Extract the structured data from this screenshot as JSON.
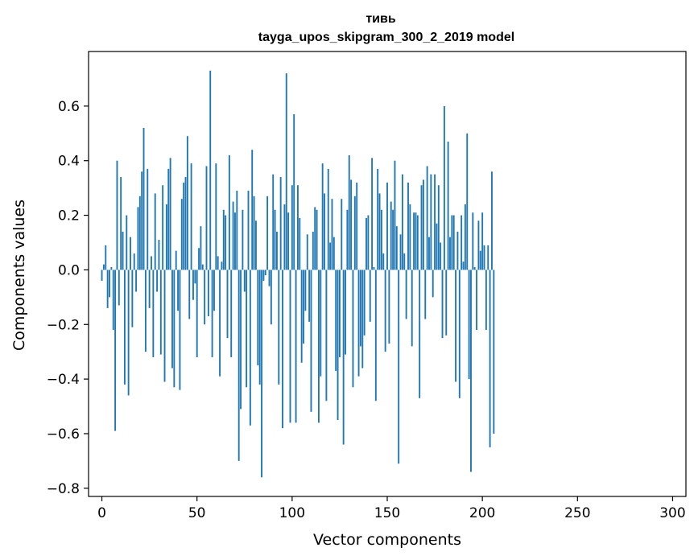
{
  "chart_data": {
    "type": "bar",
    "title": "тивь",
    "subtitle": "tayga_upos_skipgram_300_2_2019 model",
    "xlabel": "Vector components",
    "ylabel": "Components values",
    "xlim": [
      -7,
      307
    ],
    "ylim": [
      -0.83,
      0.8
    ],
    "xticks": [
      0,
      50,
      100,
      150,
      200,
      250,
      300
    ],
    "xtick_labels": [
      "0",
      "50",
      "100",
      "150",
      "200",
      "250",
      "300"
    ],
    "yticks": [
      -0.8,
      -0.6,
      -0.4,
      -0.2,
      0.0,
      0.2,
      0.4,
      0.6
    ],
    "ytick_labels": [
      "−0.8",
      "−0.6",
      "−0.4",
      "−0.2",
      "0.0",
      "0.2",
      "0.4",
      "0.6"
    ],
    "bar_color": "#1f77b4",
    "values": [
      -0.04,
      0.02,
      0.09,
      -0.14,
      -0.1,
      0.01,
      -0.22,
      -0.59,
      0.4,
      -0.13,
      0.34,
      0.14,
      -0.42,
      0.2,
      -0.46,
      0.12,
      -0.21,
      0.06,
      -0.08,
      0.23,
      0.27,
      0.36,
      0.52,
      -0.3,
      0.37,
      -0.14,
      0.05,
      -0.32,
      0.28,
      -0.08,
      0.11,
      -0.31,
      0.31,
      -0.41,
      0.24,
      0.37,
      0.41,
      -0.36,
      -0.43,
      0.07,
      -0.15,
      -0.44,
      0.26,
      0.32,
      0.34,
      0.49,
      -0.18,
      0.39,
      -0.11,
      -0.05,
      -0.32,
      0.08,
      0.16,
      0.02,
      -0.2,
      0.38,
      -0.17,
      0.73,
      -0.32,
      -0.15,
      0.39,
      0.05,
      -0.39,
      0.03,
      0.22,
      0.2,
      -0.25,
      0.42,
      -0.32,
      0.25,
      0.21,
      0.29,
      -0.7,
      -0.51,
      0.22,
      -0.08,
      -0.43,
      0.29,
      -0.57,
      0.44,
      0.27,
      0.18,
      -0.35,
      -0.42,
      -0.76,
      -0.04,
      -0.02,
      0.27,
      -0.06,
      -0.2,
      0.35,
      0.22,
      0.14,
      -0.42,
      0.34,
      -0.58,
      0.24,
      0.72,
      0.21,
      -0.56,
      0.31,
      0.57,
      -0.56,
      0.31,
      0.19,
      -0.34,
      -0.27,
      -0.15,
      0.13,
      -0.19,
      -0.52,
      0.14,
      0.23,
      0.22,
      -0.56,
      -0.39,
      0.39,
      0.28,
      -0.48,
      0.37,
      0.1,
      0.26,
      0.12,
      -0.37,
      -0.55,
      -0.32,
      0.26,
      -0.64,
      -0.31,
      0.22,
      0.42,
      0.33,
      -0.43,
      0.27,
      0.32,
      -0.39,
      -0.28,
      -0.36,
      -0.24,
      0.19,
      0.2,
      -0.19,
      0.41,
      0.01,
      -0.48,
      0.37,
      0.28,
      0.22,
      0.06,
      -0.3,
      0.32,
      -0.27,
      0.25,
      0.22,
      0.4,
      0.16,
      -0.71,
      0.13,
      0.35,
      0.06,
      -0.18,
      0.32,
      0.24,
      -0.28,
      0.21,
      0.21,
      0.2,
      -0.47,
      0.31,
      0.33,
      -0.18,
      0.38,
      0.12,
      0.35,
      -0.1,
      0.35,
      0.17,
      0.31,
      0.1,
      -0.25,
      0.6,
      -0.24,
      0.47,
      0.12,
      0.2,
      0.2,
      -0.41,
      0.14,
      -0.47,
      0.2,
      0.03,
      0.24,
      0.5,
      -0.4,
      -0.74,
      0.21,
      0.01,
      -0.22,
      0.18,
      0.07,
      0.21,
      0.09,
      -0.22,
      0.09,
      -0.65,
      0.36,
      -0.6
    ]
  }
}
